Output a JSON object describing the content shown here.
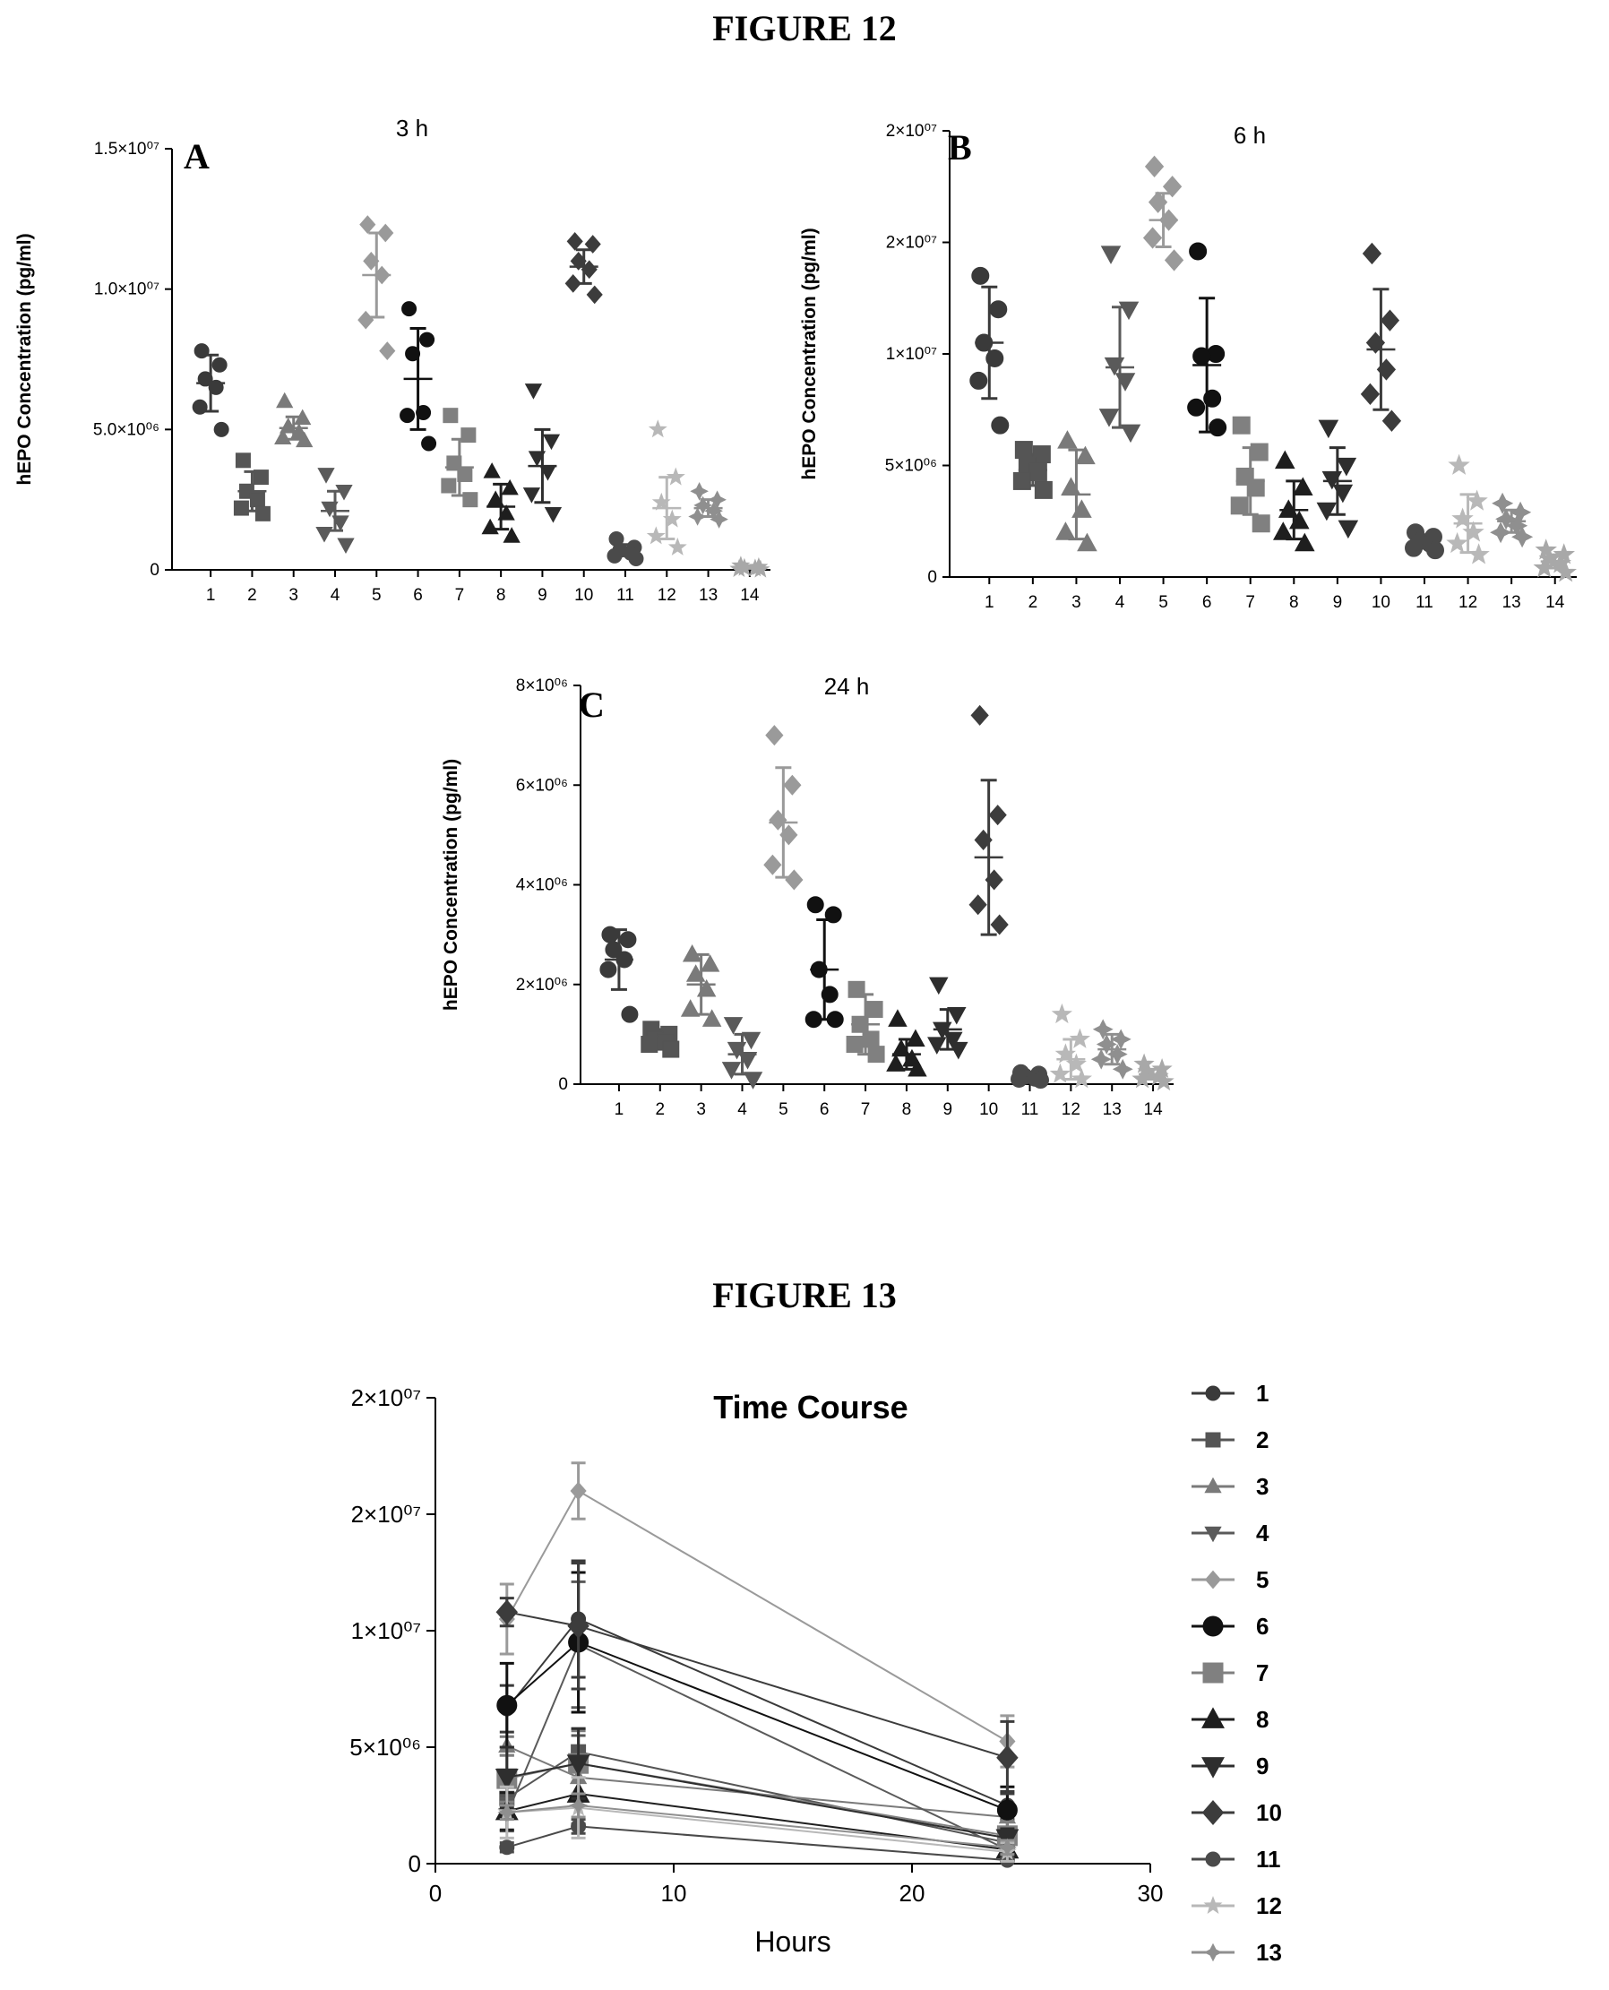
{
  "headings": {
    "fig12": "FIGURE 12",
    "fig13": "FIGURE 13"
  },
  "colors": {
    "1": "#3a3a3a",
    "2": "#555555",
    "3": "#7a7a7a",
    "4": "#5a5a5a",
    "5": "#9a9a9a",
    "6": "#111111",
    "7": "#808080",
    "8": "#1e1e1e",
    "9": "#2e2e2e",
    "10": "#3c3c3c",
    "11": "#4a4a4a",
    "12": "#b8b8b8",
    "13": "#8f8f8f",
    "14": "#a8a8a8"
  },
  "markers": {
    "1": "circle",
    "2": "square",
    "3": "triangle-up",
    "4": "triangle-down",
    "5": "diamond",
    "6": "circle",
    "7": "square",
    "8": "triangle-up",
    "9": "triangle-down",
    "10": "diamond",
    "11": "circle",
    "12": "star",
    "13": "star-diamond",
    "14": "star"
  },
  "chart_data": [
    {
      "id": "A",
      "type": "scatter",
      "letter": "A",
      "title": "3 h",
      "ylabel": "hEPO Concentration (pg/ml)",
      "categories": [
        "1",
        "2",
        "3",
        "4",
        "5",
        "6",
        "7",
        "8",
        "9",
        "10",
        "11",
        "12",
        "13",
        "14"
      ],
      "ylim": [
        0,
        15000000
      ],
      "yticks": [
        0,
        5000000,
        10000000,
        15000000
      ],
      "ytick_labels": [
        "0",
        "5.0×10⁰⁶",
        "1.0×10⁰⁷",
        "1.5×10⁰⁷"
      ],
      "groups": [
        {
          "mean": 6650000,
          "sd": 1000000,
          "points": [
            7800000,
            7300000,
            6800000,
            6500000,
            5800000,
            5000000
          ]
        },
        {
          "mean": 2800000,
          "sd": 700000,
          "points": [
            3900000,
            3300000,
            2800000,
            2500000,
            2200000,
            2000000
          ]
        },
        {
          "mean": 5050000,
          "sd": 400000,
          "points": [
            6000000,
            5400000,
            5100000,
            4900000,
            4700000,
            4600000
          ]
        },
        {
          "mean": 2100000,
          "sd": 700000,
          "points": [
            3400000,
            2800000,
            2200000,
            1700000,
            1300000,
            900000
          ]
        },
        {
          "mean": 10500000,
          "sd": 1500000,
          "points": [
            12300000,
            12000000,
            11000000,
            10500000,
            8900000,
            7800000
          ]
        },
        {
          "mean": 6800000,
          "sd": 1800000,
          "points": [
            9300000,
            8200000,
            7700000,
            5600000,
            5500000,
            4500000
          ]
        },
        {
          "mean": 3650000,
          "sd": 1000000,
          "points": [
            5500000,
            4800000,
            3800000,
            3400000,
            3000000,
            2500000
          ]
        },
        {
          "mean": 2250000,
          "sd": 800000,
          "points": [
            3500000,
            2900000,
            2500000,
            2000000,
            1500000,
            1200000
          ]
        },
        {
          "mean": 3700000,
          "sd": 1300000,
          "points": [
            6400000,
            4600000,
            4000000,
            3500000,
            2700000,
            2000000
          ]
        },
        {
          "mean": 10800000,
          "sd": 600000,
          "points": [
            11700000,
            11600000,
            11000000,
            10700000,
            10200000,
            9800000
          ]
        },
        {
          "mean": 700000,
          "sd": 200000,
          "points": [
            1100000,
            800000,
            700000,
            600000,
            500000,
            400000
          ]
        },
        {
          "mean": 2200000,
          "sd": 1100000,
          "points": [
            5000000,
            3300000,
            2400000,
            1800000,
            1200000,
            800000
          ]
        },
        {
          "mean": 2200000,
          "sd": 300000,
          "points": [
            2800000,
            2500000,
            2300000,
            2100000,
            1900000,
            1800000
          ]
        },
        {
          "mean": 100000,
          "sd": 50000,
          "points": [
            150000,
            100000,
            70000,
            50000,
            30000,
            10000
          ]
        }
      ]
    },
    {
      "id": "B",
      "type": "scatter",
      "letter": "B",
      "title": "6 h",
      "ylabel": "hEPO Concentration (pg/ml)",
      "categories": [
        "1",
        "2",
        "3",
        "4",
        "5",
        "6",
        "7",
        "8",
        "9",
        "10",
        "11",
        "12",
        "13",
        "14"
      ],
      "ylim": [
        0,
        20000000
      ],
      "yticks": [
        0,
        5000000,
        10000000,
        15000000,
        20000000
      ],
      "ytick_labels": [
        "0",
        "5×10⁰⁶",
        "1×10⁰⁷",
        "2×10⁰⁷",
        "2×10⁰⁷"
      ],
      "groups": [
        {
          "mean": 10500000,
          "sd": 2500000,
          "points": [
            13500000,
            12000000,
            10500000,
            9800000,
            8800000,
            6800000
          ]
        },
        {
          "mean": 4800000,
          "sd": 700000,
          "points": [
            5700000,
            5500000,
            5000000,
            4700000,
            4300000,
            3900000
          ]
        },
        {
          "mean": 3700000,
          "sd": 2000000,
          "points": [
            6100000,
            5400000,
            4000000,
            3000000,
            2000000,
            1500000
          ]
        },
        {
          "mean": 9400000,
          "sd": 2700000,
          "points": [
            14500000,
            12000000,
            9500000,
            8800000,
            7200000,
            6500000
          ]
        },
        {
          "mean": 16000000,
          "sd": 1200000,
          "points": [
            18400000,
            17500000,
            16800000,
            16000000,
            15200000,
            14200000
          ]
        },
        {
          "mean": 9500000,
          "sd": 3000000,
          "points": [
            14600000,
            10000000,
            9900000,
            8000000,
            7600000,
            6700000
          ]
        },
        {
          "mean": 4300000,
          "sd": 1500000,
          "points": [
            6800000,
            5600000,
            4500000,
            4000000,
            3200000,
            2400000
          ]
        },
        {
          "mean": 3000000,
          "sd": 1300000,
          "points": [
            5200000,
            4000000,
            3000000,
            2500000,
            2000000,
            1500000
          ]
        },
        {
          "mean": 4300000,
          "sd": 1500000,
          "points": [
            6700000,
            5000000,
            4400000,
            3800000,
            3000000,
            2200000
          ]
        },
        {
          "mean": 10200000,
          "sd": 2700000,
          "points": [
            14500000,
            11500000,
            10500000,
            9300000,
            8200000,
            7000000
          ]
        },
        {
          "mean": 1600000,
          "sd": 300000,
          "points": [
            2000000,
            1800000,
            1600000,
            1500000,
            1300000,
            1200000
          ]
        },
        {
          "mean": 2400000,
          "sd": 1300000,
          "points": [
            5000000,
            3400000,
            2600000,
            2000000,
            1500000,
            1000000
          ]
        },
        {
          "mean": 2500000,
          "sd": 500000,
          "points": [
            3300000,
            2900000,
            2600000,
            2300000,
            2000000,
            1800000
          ]
        },
        {
          "mean": 700000,
          "sd": 300000,
          "points": [
            1200000,
            1000000,
            800000,
            600000,
            400000,
            200000
          ]
        }
      ]
    },
    {
      "id": "C",
      "type": "scatter",
      "letter": "C",
      "title": "24 h",
      "ylabel": "hEPO Concentration (pg/ml)",
      "categories": [
        "1",
        "2",
        "3",
        "4",
        "5",
        "6",
        "7",
        "8",
        "9",
        "10",
        "11",
        "12",
        "13",
        "14"
      ],
      "ylim": [
        0,
        8000000
      ],
      "yticks": [
        0,
        2000000,
        4000000,
        6000000,
        8000000
      ],
      "ytick_labels": [
        "0",
        "2×10⁰⁶",
        "4×10⁰⁶",
        "6×10⁰⁶",
        "8×10⁰⁶"
      ],
      "groups": [
        {
          "mean": 2500000,
          "sd": 600000,
          "points": [
            3000000,
            2900000,
            2700000,
            2500000,
            2300000,
            1400000
          ]
        },
        {
          "mean": 900000,
          "sd": 200000,
          "points": [
            1100000,
            1000000,
            900000,
            850000,
            800000,
            700000
          ]
        },
        {
          "mean": 2000000,
          "sd": 600000,
          "points": [
            2600000,
            2400000,
            2200000,
            1900000,
            1500000,
            1300000
          ]
        },
        {
          "mean": 600000,
          "sd": 400000,
          "points": [
            1200000,
            900000,
            700000,
            500000,
            300000,
            100000
          ]
        },
        {
          "mean": 5250000,
          "sd": 1100000,
          "points": [
            7000000,
            6000000,
            5300000,
            5000000,
            4400000,
            4100000
          ]
        },
        {
          "mean": 2300000,
          "sd": 1000000,
          "points": [
            3600000,
            3400000,
            2300000,
            1800000,
            1300000,
            1300000
          ]
        },
        {
          "mean": 1200000,
          "sd": 600000,
          "points": [
            1900000,
            1500000,
            1200000,
            900000,
            800000,
            600000
          ]
        },
        {
          "mean": 600000,
          "sd": 300000,
          "points": [
            1300000,
            900000,
            700000,
            500000,
            400000,
            300000
          ]
        },
        {
          "mean": 1100000,
          "sd": 400000,
          "points": [
            2000000,
            1400000,
            1100000,
            900000,
            800000,
            700000
          ]
        },
        {
          "mean": 4550000,
          "sd": 1550000,
          "points": [
            7400000,
            5400000,
            4900000,
            4100000,
            3600000,
            3200000
          ]
        },
        {
          "mean": 150000,
          "sd": 50000,
          "points": [
            230000,
            200000,
            160000,
            120000,
            100000,
            80000
          ]
        },
        {
          "mean": 500000,
          "sd": 400000,
          "points": [
            1400000,
            900000,
            600000,
            400000,
            200000,
            100000
          ]
        },
        {
          "mean": 700000,
          "sd": 300000,
          "points": [
            1100000,
            900000,
            800000,
            600000,
            500000,
            300000
          ]
        },
        {
          "mean": 200000,
          "sd": 100000,
          "points": [
            400000,
            300000,
            250000,
            150000,
            100000,
            50000
          ]
        }
      ]
    },
    {
      "id": "TC",
      "type": "line",
      "title": "Time Course",
      "xlabel": "Hours",
      "ylabel": "",
      "xlim": [
        0,
        30
      ],
      "ylim": [
        0,
        20000000
      ],
      "xticks": [
        0,
        10,
        20,
        30
      ],
      "xtick_labels": [
        "0",
        "10",
        "20",
        "30"
      ],
      "yticks": [
        0,
        5000000,
        10000000,
        15000000,
        20000000
      ],
      "ytick_labels": [
        "0",
        "5×10⁰⁶",
        "1×10⁰⁷",
        "2×10⁰⁷",
        "2×10⁰⁷"
      ],
      "x": [
        3,
        6,
        24
      ],
      "series": [
        {
          "name": "1",
          "values": [
            6650000,
            10500000,
            2500000
          ],
          "sd": [
            1000000,
            2500000,
            600000
          ]
        },
        {
          "name": "2",
          "values": [
            2800000,
            4800000,
            900000
          ],
          "sd": [
            700000,
            700000,
            200000
          ]
        },
        {
          "name": "3",
          "values": [
            5050000,
            3700000,
            2000000
          ],
          "sd": [
            400000,
            2000000,
            600000
          ]
        },
        {
          "name": "4",
          "values": [
            2100000,
            9400000,
            600000
          ],
          "sd": [
            700000,
            2700000,
            400000
          ]
        },
        {
          "name": "5",
          "values": [
            10500000,
            16000000,
            5250000
          ],
          "sd": [
            1500000,
            1200000,
            1100000
          ]
        },
        {
          "name": "6",
          "values": [
            6800000,
            9500000,
            2300000
          ],
          "sd": [
            1800000,
            3000000,
            1000000
          ]
        },
        {
          "name": "7",
          "values": [
            3650000,
            4300000,
            1200000
          ],
          "sd": [
            1000000,
            1500000,
            600000
          ]
        },
        {
          "name": "8",
          "values": [
            2250000,
            3000000,
            600000
          ],
          "sd": [
            800000,
            1300000,
            300000
          ]
        },
        {
          "name": "9",
          "values": [
            3700000,
            4300000,
            1100000
          ],
          "sd": [
            1300000,
            1500000,
            400000
          ]
        },
        {
          "name": "10",
          "values": [
            10800000,
            10200000,
            4550000
          ],
          "sd": [
            600000,
            2700000,
            1550000
          ]
        },
        {
          "name": "11",
          "values": [
            700000,
            1600000,
            150000
          ],
          "sd": [
            200000,
            300000,
            50000
          ]
        },
        {
          "name": "12",
          "values": [
            2200000,
            2400000,
            500000
          ],
          "sd": [
            1100000,
            1300000,
            400000
          ]
        },
        {
          "name": "13",
          "values": [
            2200000,
            2500000,
            700000
          ],
          "sd": [
            300000,
            500000,
            300000
          ]
        }
      ]
    }
  ]
}
